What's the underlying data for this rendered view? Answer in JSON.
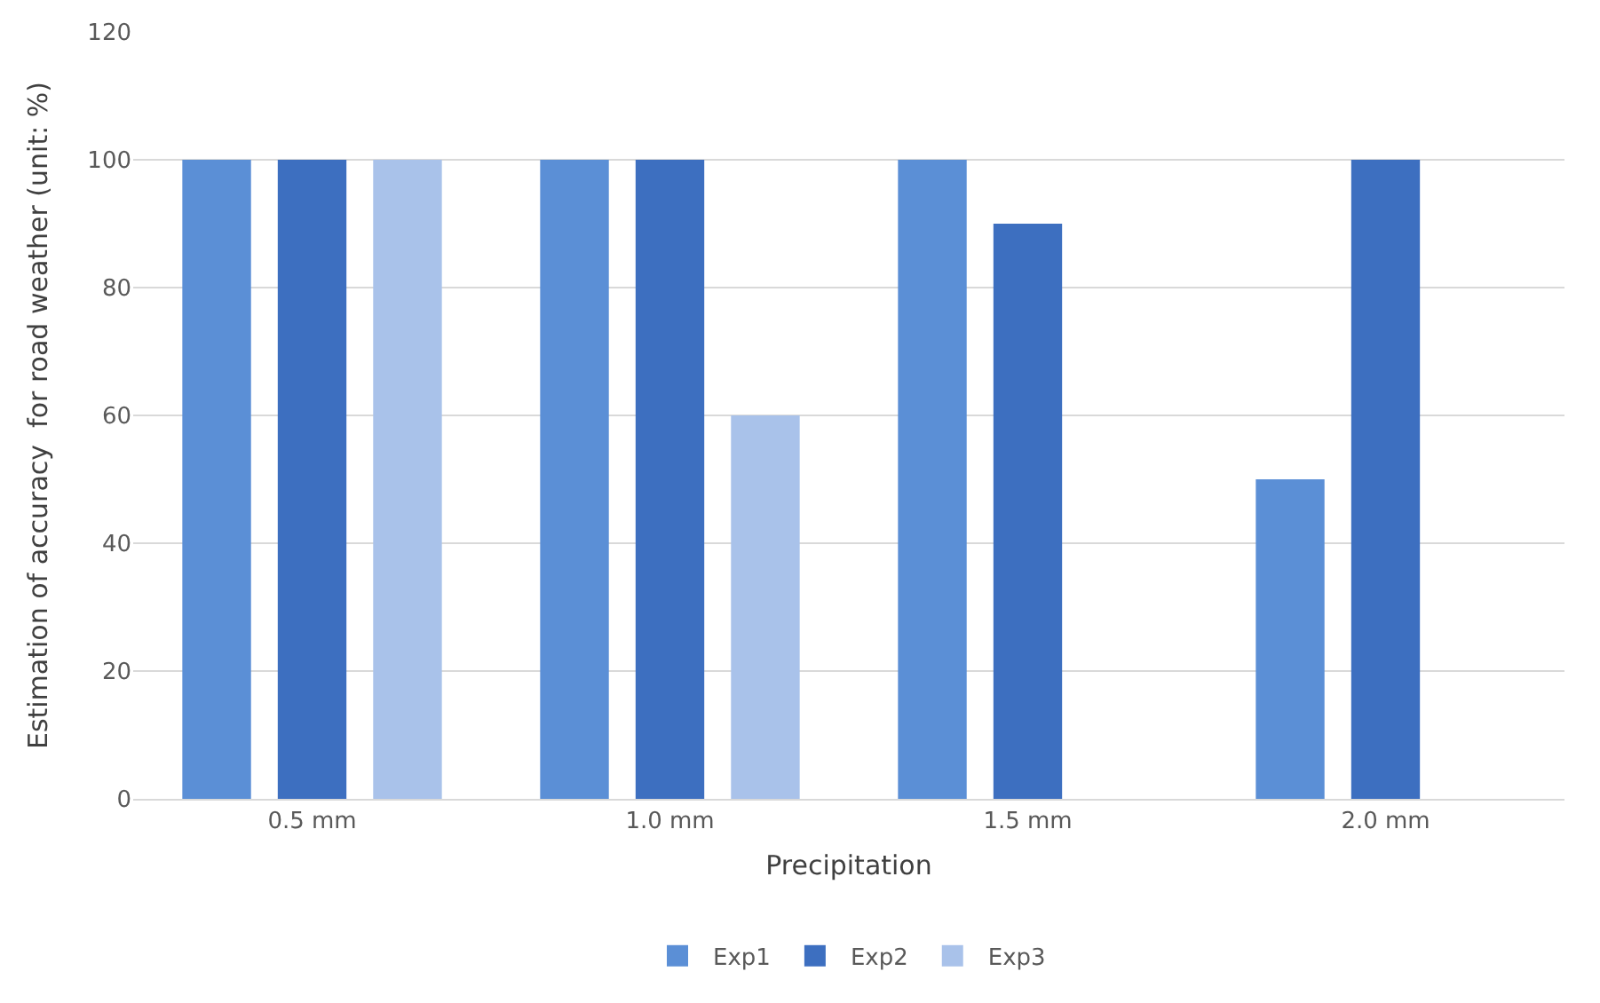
{
  "chart_data": {
    "type": "bar",
    "xlabel": "Precipitation",
    "ylabel": "Estimation of accuracy  for road weather (unit: %)",
    "categories": [
      "0.5 mm",
      "1.0 mm",
      "1.5 mm",
      "2.0 mm"
    ],
    "series": [
      {
        "name": "Exp1",
        "color": "#5b8fd6",
        "values": [
          100,
          100,
          100,
          50
        ]
      },
      {
        "name": "Exp2",
        "color": "#3d6fc0",
        "values": [
          100,
          100,
          90,
          100
        ]
      },
      {
        "name": "Exp3",
        "color": "#a9c2ea",
        "values": [
          100,
          60,
          null,
          null
        ]
      }
    ],
    "ylim": [
      0,
      120
    ],
    "yticks": [
      0,
      20,
      40,
      60,
      80,
      100,
      120
    ],
    "grid": "y",
    "legend": "bottom"
  }
}
